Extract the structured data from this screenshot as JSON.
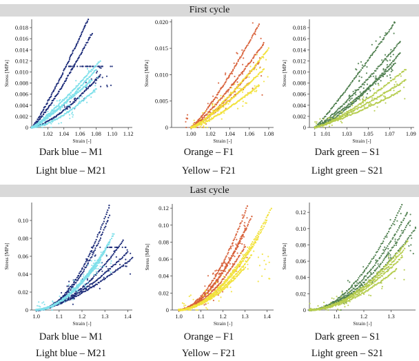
{
  "sections": [
    {
      "title": "First cycle"
    },
    {
      "title": "Last cycle"
    }
  ],
  "colors": {
    "dark_blue": "#1b2a78",
    "light_blue": "#7fe0ea",
    "orange": "#d8613a",
    "yellow": "#f2e23c",
    "dark_green": "#4f7f4f",
    "light_green": "#b5cc4d"
  },
  "chart_data": [
    {
      "id": "first-M",
      "type": "scatter",
      "xlabel": "Strain [-]",
      "ylabel": "Stress [MPa]",
      "xlim": [
        1.0,
        1.125
      ],
      "ylim": [
        0,
        0.0195
      ],
      "xticks": [
        "1.02",
        "1.04",
        "1.06",
        "1.08",
        "1.10",
        "1.12"
      ],
      "xtick_values": [
        1.02,
        1.04,
        1.06,
        1.08,
        1.1,
        1.12
      ],
      "yticks": [
        "0",
        "0.002",
        "0.004",
        "0.006",
        "0.008",
        "0.010",
        "0.012",
        "0.014",
        "0.016",
        "0.018"
      ],
      "ytick_values": [
        0,
        0.002,
        0.004,
        0.006,
        0.008,
        0.01,
        0.012,
        0.014,
        0.016,
        0.018
      ],
      "captions": [
        "Dark blue – M1",
        "Light blue – M21"
      ],
      "series": [
        {
          "color": "#1b2a78",
          "curves": [
            [
              1.0,
              0.0,
              1.07,
              0.0195,
              1.15
            ],
            [
              1.0,
              0.0,
              1.075,
              0.017,
              1.2
            ],
            [
              1.0,
              0.0,
              1.085,
              0.0095,
              1.5
            ]
          ],
          "scatter": [
            [
              1.04,
              1.1
            ],
            [
              0.0,
              0.011
            ]
          ]
        },
        {
          "color": "#7fe0ea",
          "curves": [
            [
              1.0,
              0.0,
              1.085,
              0.012,
              1.15
            ],
            [
              1.0,
              0.0,
              1.08,
              0.0105,
              1.3
            ],
            [
              1.0,
              0.0,
              1.075,
              0.0085,
              1.1
            ],
            [
              1.0,
              0.0,
              1.08,
              0.007,
              1.6
            ]
          ],
          "scatter": [
            [
              1.01,
              1.085
            ],
            [
              0.0,
              0.012
            ]
          ]
        }
      ]
    },
    {
      "id": "first-F",
      "type": "scatter",
      "xlabel": "Strain [-]",
      "ylabel": "Stress [MPa]",
      "xlim": [
        0.98,
        1.085
      ],
      "ylim": [
        0,
        0.0205
      ],
      "xticks": [
        "1.00",
        "1.02",
        "1.04",
        "1.06",
        "1.08"
      ],
      "xtick_values": [
        1.0,
        1.02,
        1.04,
        1.06,
        1.08
      ],
      "yticks": [
        "0",
        "0.005",
        "0.010",
        "0.015",
        "0.020"
      ],
      "ytick_values": [
        0,
        0.005,
        0.01,
        0.015,
        0.02
      ],
      "captions": [
        "Orange – F1",
        "Yellow – F21"
      ],
      "series": [
        {
          "color": "#d8613a",
          "curves": [
            [
              1.0,
              0.0,
              1.07,
              0.0195,
              1.2
            ],
            [
              1.0,
              0.0,
              1.075,
              0.016,
              1.2
            ],
            [
              1.0,
              0.0,
              1.07,
              0.0125,
              1.3
            ],
            [
              1.0,
              0.0,
              1.06,
              0.0085,
              1.2
            ]
          ],
          "scatter": [
            [
              0.99,
              1.075
            ],
            [
              0.0,
              0.02
            ]
          ]
        },
        {
          "color": "#f2e23c",
          "curves": [
            [
              1.0,
              0.0,
              1.08,
              0.015,
              1.3
            ],
            [
              1.0,
              0.0,
              1.075,
              0.011,
              1.2
            ],
            [
              1.0,
              0.0,
              1.07,
              0.008,
              1.3
            ]
          ],
          "scatter": [
            [
              1.0,
              1.08
            ],
            [
              0.0,
              0.014
            ]
          ]
        }
      ]
    },
    {
      "id": "first-S",
      "type": "scatter",
      "xlabel": "Strain [-]",
      "ylabel": "Stress [MPa]",
      "xlim": [
        0.995,
        1.093
      ],
      "ylim": [
        0,
        0.0195
      ],
      "xticks": [
        "1",
        "1.01",
        "1.03",
        "1.05",
        "1.07",
        "1.09"
      ],
      "xtick_values": [
        1.0,
        1.01,
        1.03,
        1.05,
        1.07,
        1.09
      ],
      "yticks": [
        "0",
        "0.002",
        "0.004",
        "0.006",
        "0.008",
        "0.010",
        "0.012",
        "0.014",
        "0.016",
        "0.018"
      ],
      "ytick_values": [
        0,
        0.002,
        0.004,
        0.006,
        0.008,
        0.01,
        0.012,
        0.014,
        0.016,
        0.018
      ],
      "captions": [
        "Dark green – S1",
        "Light green – S21"
      ],
      "series": [
        {
          "color": "#4f7f4f",
          "curves": [
            [
              1.0,
              0.0,
              1.075,
              0.019,
              1.1
            ],
            [
              1.0,
              0.0,
              1.08,
              0.0155,
              1.2
            ],
            [
              1.0,
              0.0,
              1.08,
              0.0135,
              1.4
            ],
            [
              1.0,
              0.0,
              1.075,
              0.0115,
              1.2
            ]
          ],
          "scatter": [
            [
              1.03,
              1.075
            ],
            [
              0.004,
              0.019
            ]
          ]
        },
        {
          "color": "#b5cc4d",
          "curves": [
            [
              1.0,
              0.0,
              1.085,
              0.0105,
              1.3
            ],
            [
              1.0,
              0.0,
              1.085,
              0.0085,
              1.2
            ],
            [
              1.0,
              0.0,
              1.08,
              0.0065,
              1.2
            ]
          ],
          "scatter": [
            [
              1.0,
              1.09
            ],
            [
              0.0,
              0.0105
            ]
          ]
        }
      ]
    },
    {
      "id": "last-M",
      "type": "scatter",
      "xlabel": "Strain [-]",
      "ylabel": "Stress [MPa]",
      "xlim": [
        0.98,
        1.42
      ],
      "ylim": [
        0,
        0.12
      ],
      "xticks": [
        "1.0",
        "1.1",
        "1.2",
        "1.3",
        "1.4"
      ],
      "xtick_values": [
        1.0,
        1.1,
        1.2,
        1.3,
        1.4
      ],
      "yticks": [
        "0",
        "0.02",
        "0.04",
        "0.06",
        "0.08",
        "0.10"
      ],
      "ytick_values": [
        0,
        0.02,
        0.04,
        0.06,
        0.08,
        0.1
      ],
      "captions": [
        "Dark blue – M1",
        "Light blue – M21"
      ],
      "series": [
        {
          "color": "#1b2a78",
          "curves": [
            [
              1.0,
              0.0,
              1.32,
              0.117,
              2.0
            ],
            [
              1.0,
              0.0,
              1.32,
              0.105,
              2.0
            ],
            [
              1.0,
              0.0,
              1.38,
              0.078,
              1.8
            ],
            [
              1.0,
              0.0,
              1.4,
              0.065,
              1.6
            ],
            [
              1.0,
              0.0,
              1.42,
              0.058,
              1.5
            ]
          ],
          "scatter": [
            [
              1.1,
              1.42
            ],
            [
              0.0,
              0.07
            ]
          ]
        },
        {
          "color": "#7fe0ea",
          "curves": [
            [
              1.0,
              0.0,
              1.34,
              0.085,
              1.8
            ],
            [
              1.0,
              0.0,
              1.32,
              0.075,
              1.8
            ],
            [
              1.0,
              0.0,
              1.3,
              0.065,
              1.8
            ],
            [
              1.0,
              0.0,
              1.28,
              0.055,
              1.8
            ]
          ],
          "scatter": [
            [
              1.0,
              1.34
            ],
            [
              0.0,
              0.085
            ]
          ]
        }
      ]
    },
    {
      "id": "last-F",
      "type": "scatter",
      "xlabel": "Strain [-]",
      "ylabel": "Stress [MPa]",
      "xlim": [
        0.97,
        1.43
      ],
      "ylim": [
        0,
        0.125
      ],
      "xticks": [
        "1.0",
        "1.1",
        "1.2",
        "1.3",
        "1.4"
      ],
      "xtick_values": [
        1.0,
        1.1,
        1.2,
        1.3,
        1.4
      ],
      "yticks": [
        "0",
        "0.02",
        "0.04",
        "0.06",
        "0.08",
        "0.10",
        "0.12"
      ],
      "ytick_values": [
        0,
        0.02,
        0.04,
        0.06,
        0.08,
        0.1,
        0.12
      ],
      "captions": [
        "Orange – F1",
        "Yellow – F21"
      ],
      "series": [
        {
          "color": "#d8613a",
          "curves": [
            [
              1.0,
              0.0,
              1.31,
              0.122,
              1.8
            ],
            [
              1.0,
              0.0,
              1.33,
              0.11,
              1.8
            ],
            [
              1.0,
              0.0,
              1.3,
              0.095,
              1.8
            ],
            [
              1.0,
              0.0,
              1.3,
              0.075,
              1.8
            ]
          ],
          "scatter": [
            [
              1.1,
              1.31
            ],
            [
              0.0,
              0.12
            ]
          ]
        },
        {
          "color": "#f2e23c",
          "curves": [
            [
              1.0,
              0.0,
              1.42,
              0.12,
              1.8
            ],
            [
              1.0,
              0.0,
              1.4,
              0.105,
              1.8
            ],
            [
              1.0,
              0.0,
              1.36,
              0.085,
              1.8
            ],
            [
              1.0,
              0.0,
              1.33,
              0.065,
              1.8
            ],
            [
              1.0,
              0.0,
              1.3,
              0.05,
              1.8
            ]
          ],
          "scatter": [
            [
              1.0,
              1.42
            ],
            [
              0.0,
              0.12
            ]
          ]
        }
      ]
    },
    {
      "id": "last-S",
      "type": "scatter",
      "xlabel": "Strain [-]",
      "ylabel": "Stress [MPa]",
      "xlim": [
        1.0,
        1.39
      ],
      "ylim": [
        0,
        0.132
      ],
      "xticks": [
        "1.1",
        "1.2",
        "1.3"
      ],
      "xtick_values": [
        1.1,
        1.2,
        1.3
      ],
      "yticks": [
        "0",
        "0.02",
        "0.04",
        "0.06",
        "0.08",
        "0.10",
        "0.12"
      ],
      "ytick_values": [
        0,
        0.02,
        0.04,
        0.06,
        0.08,
        0.1,
        0.12
      ],
      "captions": [
        "Dark green – S1",
        "Light green – S21"
      ],
      "series": [
        {
          "color": "#4f7f4f",
          "curves": [
            [
              1.0,
              0.0,
              1.34,
              0.13,
              1.9
            ],
            [
              1.0,
              0.0,
              1.36,
              0.12,
              1.9
            ],
            [
              1.0,
              0.0,
              1.37,
              0.11,
              1.9
            ],
            [
              1.0,
              0.0,
              1.39,
              0.1,
              1.8
            ]
          ],
          "scatter": [
            [
              1.1,
              1.39
            ],
            [
              0.0,
              0.13
            ]
          ]
        },
        {
          "color": "#b5cc4d",
          "curves": [
            [
              1.0,
              0.0,
              1.36,
              0.085,
              1.8
            ],
            [
              1.0,
              0.0,
              1.35,
              0.075,
              1.8
            ],
            [
              1.0,
              0.0,
              1.34,
              0.065,
              1.8
            ],
            [
              1.0,
              0.0,
              1.32,
              0.05,
              1.8
            ]
          ],
          "scatter": [
            [
              1.0,
              1.36
            ],
            [
              0.0,
              0.085
            ]
          ]
        }
      ]
    }
  ]
}
